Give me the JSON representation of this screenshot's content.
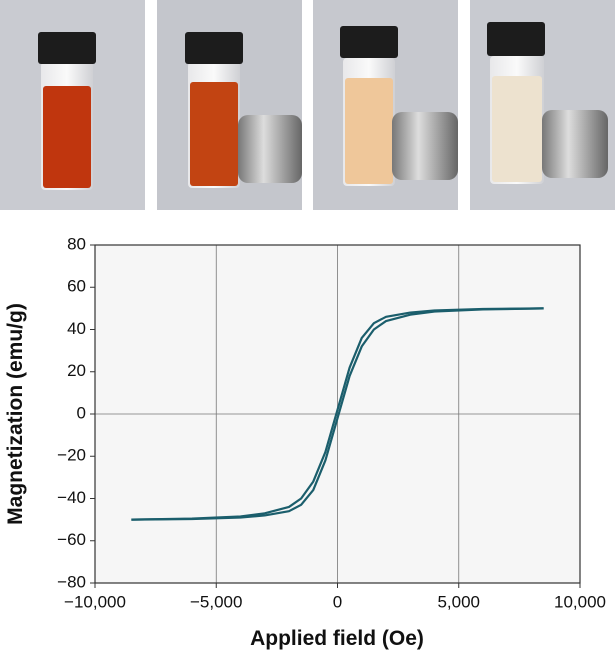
{
  "chart_data": {
    "type": "line",
    "xlabel": "Applied field (Oe)",
    "ylabel": "Magnetization (emu/g)",
    "x": [
      -8500,
      -6000,
      -4000,
      -3000,
      -2000,
      -1500,
      -1000,
      -500,
      -250,
      0,
      250,
      500,
      1000,
      1500,
      2000,
      3000,
      4000,
      6000,
      8500
    ],
    "series": [
      {
        "color": "#1b5e6c",
        "values": [
          -50,
          -49.7,
          -49,
          -48,
          -46,
          -43,
          -36,
          -22,
          -12,
          -2,
          8,
          18,
          32,
          40,
          44,
          47,
          48.5,
          49.5,
          50
        ]
      },
      {
        "color": "#1b5e6c",
        "values": [
          -50,
          -49.5,
          -48.5,
          -47,
          -44,
          -40,
          -32,
          -18,
          -8,
          2,
          12,
          22,
          36,
          43,
          46,
          48,
          49,
          49.7,
          50
        ]
      }
    ],
    "xlim": [
      -10000,
      10000
    ],
    "xticks": [
      {
        "value": -10000,
        "label": "−10,000"
      },
      {
        "value": -5000,
        "label": "−5,000"
      },
      0,
      {
        "value": 5000,
        "label": "5,000"
      },
      {
        "value": 10000,
        "label": "10,000"
      }
    ],
    "ylim": [
      -80,
      80
    ],
    "yticks": [
      {
        "value": -80,
        "label": "−80"
      },
      {
        "value": -60,
        "label": "−60"
      },
      {
        "value": -40,
        "label": "−40"
      },
      {
        "value": -20,
        "label": "−20"
      },
      0,
      20,
      40,
      60,
      80
    ],
    "xgrid": true
  }
}
